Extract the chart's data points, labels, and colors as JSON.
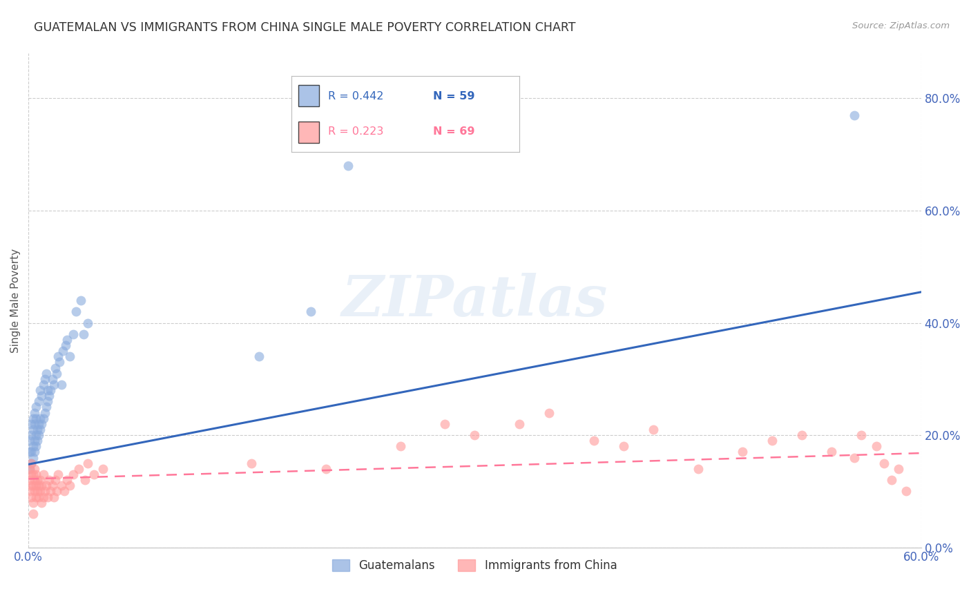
{
  "title": "GUATEMALAN VS IMMIGRANTS FROM CHINA SINGLE MALE POVERTY CORRELATION CHART",
  "source": "Source: ZipAtlas.com",
  "ylabel": "Single Male Poverty",
  "xlim": [
    0.0,
    0.6
  ],
  "ylim": [
    0.0,
    0.88
  ],
  "ytick_positions": [
    0.0,
    0.2,
    0.4,
    0.6,
    0.8
  ],
  "ytick_labels": [
    "0.0%",
    "20.0%",
    "40.0%",
    "60.0%",
    "80.0%"
  ],
  "xtick_positions": [
    0.0,
    0.6
  ],
  "xtick_labels": [
    "0.0%",
    "60.0%"
  ],
  "background_color": "#ffffff",
  "grid_color": "#cccccc",
  "axis_label_color": "#4466bb",
  "title_color": "#333333",
  "watermark_text": "ZIPatlas",
  "legend_R1": "R = 0.442",
  "legend_N1": "N = 59",
  "legend_R2": "R = 0.223",
  "legend_N2": "N = 69",
  "blue_color": "#88aadd",
  "pink_color": "#ff9999",
  "blue_line_color": "#3366bb",
  "pink_line_color": "#ff7799",
  "blue_line_start_y": 0.148,
  "blue_line_end_y": 0.455,
  "pink_line_start_y": 0.122,
  "pink_line_end_y": 0.168,
  "guatemalans_x": [
    0.001,
    0.001,
    0.001,
    0.002,
    0.002,
    0.002,
    0.002,
    0.003,
    0.003,
    0.003,
    0.003,
    0.004,
    0.004,
    0.004,
    0.004,
    0.005,
    0.005,
    0.005,
    0.005,
    0.006,
    0.006,
    0.007,
    0.007,
    0.007,
    0.008,
    0.008,
    0.008,
    0.009,
    0.009,
    0.01,
    0.01,
    0.011,
    0.011,
    0.012,
    0.012,
    0.013,
    0.013,
    0.014,
    0.015,
    0.016,
    0.017,
    0.018,
    0.019,
    0.02,
    0.021,
    0.022,
    0.023,
    0.025,
    0.026,
    0.028,
    0.03,
    0.032,
    0.035,
    0.037,
    0.04,
    0.155,
    0.19,
    0.215,
    0.555
  ],
  "guatemalans_y": [
    0.14,
    0.17,
    0.19,
    0.15,
    0.17,
    0.2,
    0.22,
    0.16,
    0.18,
    0.21,
    0.23,
    0.17,
    0.19,
    0.22,
    0.24,
    0.18,
    0.2,
    0.23,
    0.25,
    0.19,
    0.21,
    0.2,
    0.22,
    0.26,
    0.21,
    0.23,
    0.28,
    0.22,
    0.27,
    0.23,
    0.29,
    0.24,
    0.3,
    0.25,
    0.31,
    0.26,
    0.28,
    0.27,
    0.28,
    0.3,
    0.29,
    0.32,
    0.31,
    0.34,
    0.33,
    0.29,
    0.35,
    0.36,
    0.37,
    0.34,
    0.38,
    0.42,
    0.44,
    0.38,
    0.4,
    0.34,
    0.42,
    0.68,
    0.77
  ],
  "china_x": [
    0.001,
    0.001,
    0.001,
    0.002,
    0.002,
    0.002,
    0.002,
    0.003,
    0.003,
    0.003,
    0.003,
    0.004,
    0.004,
    0.004,
    0.005,
    0.005,
    0.005,
    0.006,
    0.006,
    0.007,
    0.007,
    0.008,
    0.008,
    0.009,
    0.009,
    0.01,
    0.01,
    0.011,
    0.012,
    0.013,
    0.014,
    0.015,
    0.016,
    0.017,
    0.018,
    0.019,
    0.02,
    0.022,
    0.024,
    0.026,
    0.028,
    0.03,
    0.034,
    0.038,
    0.04,
    0.044,
    0.05,
    0.15,
    0.2,
    0.25,
    0.28,
    0.3,
    0.33,
    0.35,
    0.38,
    0.4,
    0.42,
    0.45,
    0.48,
    0.5,
    0.52,
    0.54,
    0.555,
    0.56,
    0.57,
    0.575,
    0.58,
    0.585,
    0.59
  ],
  "china_y": [
    0.1,
    0.12,
    0.14,
    0.09,
    0.11,
    0.13,
    0.15,
    0.08,
    0.11,
    0.13,
    0.06,
    0.1,
    0.12,
    0.14,
    0.09,
    0.11,
    0.13,
    0.1,
    0.12,
    0.09,
    0.11,
    0.1,
    0.12,
    0.08,
    0.11,
    0.09,
    0.13,
    0.1,
    0.11,
    0.09,
    0.12,
    0.1,
    0.11,
    0.09,
    0.12,
    0.1,
    0.13,
    0.11,
    0.1,
    0.12,
    0.11,
    0.13,
    0.14,
    0.12,
    0.15,
    0.13,
    0.14,
    0.15,
    0.14,
    0.18,
    0.22,
    0.2,
    0.22,
    0.24,
    0.19,
    0.18,
    0.21,
    0.14,
    0.17,
    0.19,
    0.2,
    0.17,
    0.16,
    0.2,
    0.18,
    0.15,
    0.12,
    0.14,
    0.1
  ]
}
